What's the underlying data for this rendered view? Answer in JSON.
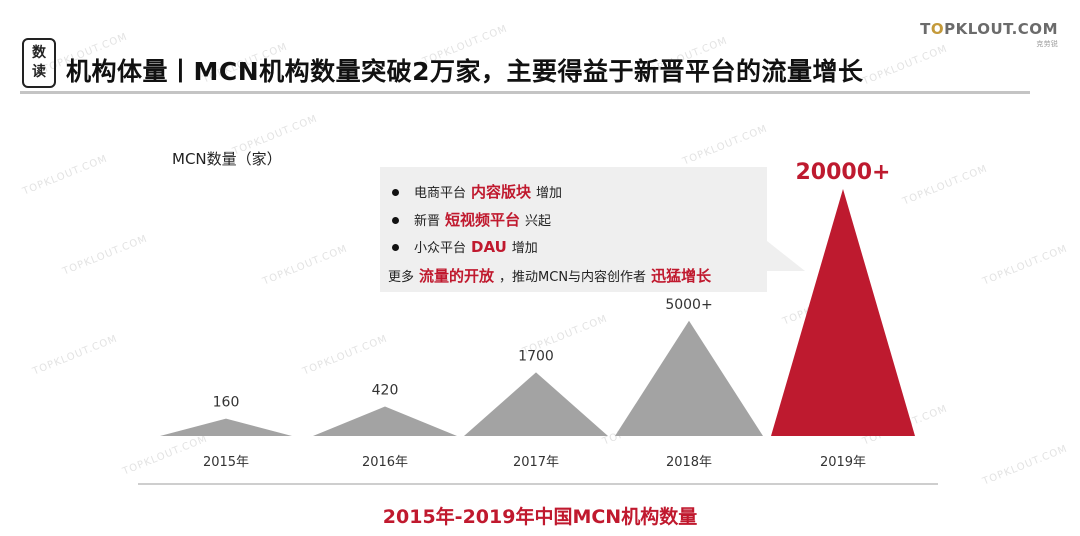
{
  "header": {
    "badge_line1": "数",
    "badge_line2": "读",
    "title": "机构体量丨MCN机构数量突破2万家，主要得益于新晋平台的流量增长"
  },
  "logo": {
    "text_pre": "T",
    "text_o": "O",
    "text_post": "PKLOUT.COM",
    "tagline": "克劳锐"
  },
  "watermark_text": "TOPKLOUT.COM",
  "callout": {
    "items": [
      {
        "pre": "电商平台",
        "highlight": "内容版块",
        "post": "增加"
      },
      {
        "pre": "新晋",
        "highlight": "短视频平台",
        "post": "兴起"
      },
      {
        "pre": "小众平台",
        "highlight": "DAU",
        "post": "增加"
      }
    ],
    "summary": {
      "pre": "更多",
      "highlight1": "流量的开放",
      "mid": "，推动MCN与内容创作者",
      "highlight2": "迅猛增长"
    }
  },
  "chart_data": {
    "type": "bar",
    "title": "2015年-2019年中国MCN机构数量",
    "ylabel": "MCN数量（家）",
    "categories": [
      "2015年",
      "2016年",
      "2017年",
      "2018年",
      "2019年"
    ],
    "values": [
      160,
      420,
      1700,
      5000,
      20000
    ],
    "value_labels": [
      "160",
      "420",
      "1700",
      "5000+",
      "20000+"
    ],
    "colors": [
      "#a3a3a3",
      "#a3a3a3",
      "#a3a3a3",
      "#a3a3a3",
      "#be1a2f"
    ],
    "highlight_color": "#be1a2f",
    "grid": false,
    "legend": "none"
  }
}
